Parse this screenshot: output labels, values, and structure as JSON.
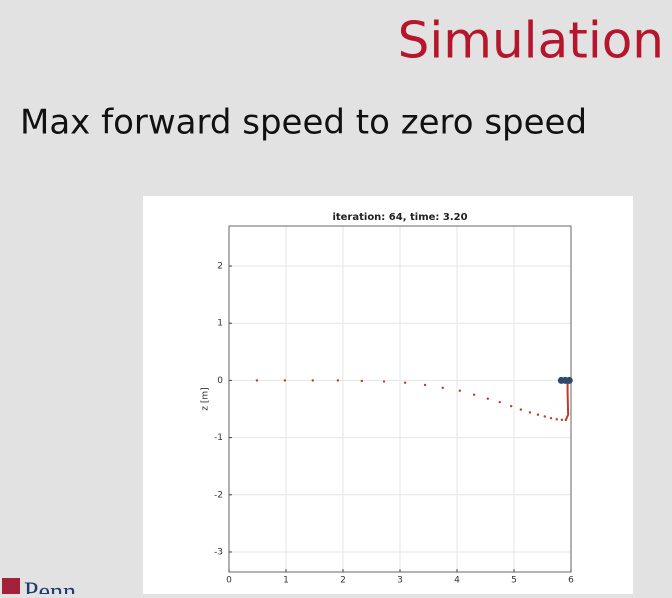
{
  "slide": {
    "title": "Simulation",
    "subtitle": "Max forward speed to zero speed",
    "logo": "Penn"
  },
  "chart_data": {
    "type": "scatter",
    "title": "iteration: 64, time: 3.20",
    "y_label": "z [m]",
    "xlim": [
      0,
      6
    ],
    "ylim": [
      -3.35,
      2.7
    ],
    "xticks": [
      0,
      1,
      2,
      3,
      4,
      5,
      6
    ],
    "yticks": [
      -3,
      -2,
      -1,
      0,
      1,
      2
    ],
    "grid": true,
    "series": [
      {
        "mode": "markers",
        "color": "#c0392b",
        "x": [
          0.49,
          0.98,
          1.47,
          1.91,
          2.33,
          2.72,
          3.09,
          3.44,
          3.75,
          4.05,
          4.3,
          4.54,
          4.75,
          4.95,
          5.12,
          5.28,
          5.42,
          5.54,
          5.65,
          5.75,
          5.84,
          5.91
        ],
        "values": [
          0,
          0,
          0,
          0,
          -0.01,
          -0.02,
          -0.04,
          -0.08,
          -0.13,
          -0.18,
          -0.25,
          -0.32,
          -0.38,
          -0.45,
          -0.51,
          -0.56,
          -0.6,
          -0.63,
          -0.66,
          -0.68,
          -0.69,
          -0.69
        ]
      },
      {
        "mode": "line",
        "color": "#c0392b",
        "x": [
          5.91,
          5.95,
          5.94,
          5.94
        ],
        "values": [
          -0.69,
          -0.6,
          -0.2,
          0
        ]
      },
      {
        "mode": "robot",
        "color": "#2c4a6e",
        "x": [
          5.83,
          5.9,
          5.97
        ],
        "values": [
          0,
          0,
          0
        ]
      }
    ]
  }
}
